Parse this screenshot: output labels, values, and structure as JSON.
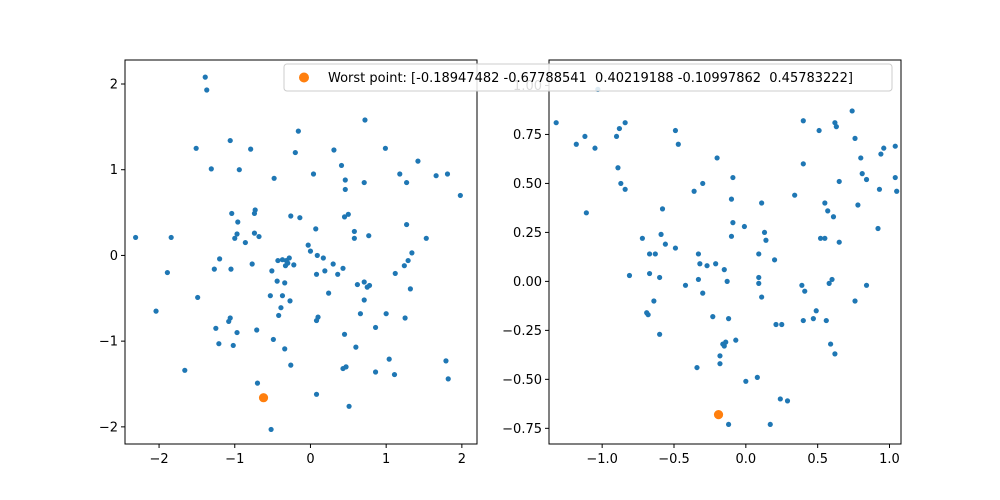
{
  "chart_data": [
    {
      "type": "scatter",
      "xlim": [
        -2.45,
        2.2
      ],
      "ylim": [
        -2.2,
        2.28
      ],
      "xticks": [
        -2,
        -1,
        0,
        1,
        2
      ],
      "xtick_labels": [
        "−2",
        "−1",
        "0",
        "1",
        "2"
      ],
      "yticks": [
        -2,
        -1,
        0,
        1,
        2
      ],
      "ytick_labels": [
        "−2",
        "−1",
        "0",
        "1",
        "2"
      ],
      "series": [
        {
          "color": "#1f77b4",
          "points": [
            [
              -1.39,
              2.08
            ],
            [
              -1.37,
              1.93
            ],
            [
              -1.51,
              1.25
            ],
            [
              -1.31,
              1.01
            ],
            [
              -1.06,
              1.34
            ],
            [
              -0.79,
              1.24
            ],
            [
              -0.94,
              1.0
            ],
            [
              -0.73,
              0.53
            ],
            [
              -0.74,
              0.49
            ],
            [
              -1.04,
              0.49
            ],
            [
              -0.96,
              0.39
            ],
            [
              -0.97,
              0.25
            ],
            [
              -1.0,
              0.2
            ],
            [
              -0.86,
              0.15
            ],
            [
              -0.74,
              0.26
            ],
            [
              -0.68,
              0.22
            ],
            [
              -1.2,
              -0.04
            ],
            [
              -1.27,
              -0.16
            ],
            [
              -1.05,
              -0.16
            ],
            [
              -0.77,
              -0.1
            ],
            [
              -1.49,
              -0.49
            ],
            [
              -1.25,
              -0.85
            ],
            [
              -1.06,
              -0.73
            ],
            [
              -1.08,
              -0.77
            ],
            [
              -0.97,
              -0.9
            ],
            [
              -1.02,
              -1.05
            ],
            [
              -1.21,
              -1.03
            ],
            [
              -0.71,
              -0.87
            ],
            [
              -0.48,
              0.9
            ],
            [
              -0.26,
              0.46
            ],
            [
              -0.14,
              0.44
            ],
            [
              0.07,
              0.31
            ],
            [
              -0.03,
              0.12
            ],
            [
              0.0,
              0.05
            ],
            [
              -0.37,
              -0.05
            ],
            [
              -0.43,
              -0.06
            ],
            [
              -0.32,
              -0.06
            ],
            [
              -0.28,
              -0.03
            ],
            [
              -0.3,
              -0.09
            ],
            [
              -0.33,
              -0.12
            ],
            [
              -0.22,
              -0.11
            ],
            [
              -0.51,
              -0.18
            ],
            [
              -0.44,
              -0.3
            ],
            [
              -0.34,
              -0.32
            ],
            [
              -0.53,
              -0.47
            ],
            [
              -0.37,
              -0.47
            ],
            [
              -0.39,
              -0.61
            ],
            [
              -0.42,
              -0.7
            ],
            [
              -0.27,
              -0.53
            ],
            [
              -0.49,
              -0.98
            ],
            [
              -0.34,
              -1.09
            ],
            [
              -0.26,
              -1.28
            ],
            [
              -0.2,
              1.2
            ],
            [
              -0.16,
              1.45
            ],
            [
              0.04,
              0.95
            ],
            [
              0.31,
              1.23
            ],
            [
              0.41,
              1.05
            ],
            [
              0.46,
              0.88
            ],
            [
              0.46,
              0.77
            ],
            [
              0.45,
              0.45
            ],
            [
              0.5,
              0.48
            ],
            [
              0.09,
              0.0
            ],
            [
              0.17,
              -0.03
            ],
            [
              0.08,
              -0.22
            ],
            [
              0.19,
              -0.18
            ],
            [
              0.3,
              -0.1
            ],
            [
              0.36,
              -0.22
            ],
            [
              0.43,
              -0.15
            ],
            [
              0.24,
              -0.44
            ],
            [
              0.1,
              -0.72
            ],
            [
              0.08,
              -0.76
            ],
            [
              0.45,
              -0.92
            ],
            [
              0.6,
              -1.07
            ],
            [
              0.43,
              -1.32
            ],
            [
              0.47,
              -1.3
            ],
            [
              0.08,
              -1.62
            ],
            [
              0.51,
              -1.76
            ],
            [
              -0.52,
              -2.03
            ],
            [
              -0.7,
              -1.49
            ],
            [
              0.72,
              1.58
            ],
            [
              0.99,
              1.25
            ],
            [
              0.71,
              0.85
            ],
            [
              0.58,
              0.28
            ],
            [
              0.58,
              0.2
            ],
            [
              0.77,
              0.23
            ],
            [
              0.62,
              -0.34
            ],
            [
              0.78,
              -0.35
            ],
            [
              0.71,
              -0.31
            ],
            [
              0.75,
              -0.37
            ],
            [
              0.71,
              -0.52
            ],
            [
              0.66,
              -0.68
            ],
            [
              0.86,
              -0.84
            ],
            [
              1.0,
              -0.68
            ],
            [
              0.86,
              -1.36
            ],
            [
              1.04,
              -1.21
            ],
            [
              1.11,
              -1.39
            ],
            [
              1.18,
              0.95
            ],
            [
              1.27,
              0.85
            ],
            [
              1.42,
              1.1
            ],
            [
              1.66,
              0.93
            ],
            [
              1.81,
              0.95
            ],
            [
              1.98,
              0.7
            ],
            [
              1.27,
              0.36
            ],
            [
              1.53,
              0.2
            ],
            [
              1.34,
              0.03
            ],
            [
              1.29,
              -0.06
            ],
            [
              1.24,
              -0.12
            ],
            [
              1.12,
              -0.21
            ],
            [
              1.32,
              -0.39
            ],
            [
              1.25,
              -0.73
            ],
            [
              1.79,
              -1.23
            ],
            [
              1.82,
              -1.44
            ],
            [
              -1.84,
              0.21
            ],
            [
              -1.89,
              -0.2
            ],
            [
              -2.31,
              0.21
            ],
            [
              -2.04,
              -0.65
            ],
            [
              -1.66,
              -1.34
            ]
          ]
        },
        {
          "color": "#ff7f0e",
          "points": [
            [
              -0.62,
              -1.66
            ]
          ]
        }
      ]
    },
    {
      "type": "scatter",
      "xlim": [
        -1.37,
        1.08
      ],
      "ylim": [
        -0.83,
        1.13
      ],
      "xticks": [
        -1.0,
        -0.5,
        0.0,
        0.5,
        1.0
      ],
      "xtick_labels": [
        "−1.0",
        "−0.5",
        "0.0",
        "0.5",
        "1.0"
      ],
      "yticks": [
        -0.75,
        -0.5,
        -0.25,
        0.0,
        0.25,
        0.5,
        0.75,
        1.0
      ],
      "ytick_labels": [
        "−0.75",
        "−0.50",
        "−0.25",
        "0.00",
        "0.25",
        "0.50",
        "0.75",
        "1.00"
      ],
      "series": [
        {
          "color": "#1f77b4",
          "points": [
            [
              -1.32,
              0.81
            ],
            [
              -1.18,
              0.7
            ],
            [
              -1.12,
              0.74
            ],
            [
              -1.11,
              0.35
            ],
            [
              -1.05,
              0.68
            ],
            [
              -1.03,
              0.98
            ],
            [
              -0.9,
              0.74
            ],
            [
              -0.88,
              0.78
            ],
            [
              -0.84,
              0.81
            ],
            [
              -0.89,
              0.58
            ],
            [
              -0.87,
              0.5
            ],
            [
              -0.84,
              0.47
            ],
            [
              -0.81,
              0.03
            ],
            [
              -0.72,
              0.22
            ],
            [
              -0.67,
              0.14
            ],
            [
              -0.63,
              0.14
            ],
            [
              -0.67,
              0.04
            ],
            [
              -0.64,
              -0.1
            ],
            [
              -0.68,
              -0.17
            ],
            [
              -0.69,
              -0.16
            ],
            [
              -0.6,
              0.02
            ],
            [
              -0.59,
              0.24
            ],
            [
              -0.58,
              0.37
            ],
            [
              -0.56,
              0.19
            ],
            [
              -0.6,
              -0.27
            ],
            [
              -0.49,
              0.77
            ],
            [
              -0.47,
              0.7
            ],
            [
              -0.49,
              0.17
            ],
            [
              -0.36,
              0.46
            ],
            [
              -0.42,
              -0.02
            ],
            [
              -0.34,
              -0.44
            ],
            [
              -0.3,
              0.5
            ],
            [
              -0.33,
              0.14
            ],
            [
              -0.32,
              0.09
            ],
            [
              -0.33,
              0.01
            ],
            [
              -0.3,
              -0.06
            ],
            [
              -0.27,
              0.08
            ],
            [
              -0.2,
              0.63
            ],
            [
              -0.23,
              -0.18
            ],
            [
              -0.18,
              -0.38
            ],
            [
              -0.18,
              -0.42
            ],
            [
              -0.16,
              -0.32
            ],
            [
              -0.15,
              -0.33
            ],
            [
              -0.14,
              -0.31
            ],
            [
              -0.15,
              0.06
            ],
            [
              -0.13,
              0.0
            ],
            [
              -0.12,
              -0.19
            ],
            [
              -0.12,
              -0.73
            ],
            [
              -0.09,
              0.53
            ],
            [
              -0.1,
              0.42
            ],
            [
              -0.1,
              0.23
            ],
            [
              -0.09,
              0.3
            ],
            [
              -0.07,
              -0.3
            ],
            [
              -0.01,
              0.28
            ],
            [
              0.0,
              -0.51
            ],
            [
              0.09,
              0.14
            ],
            [
              0.11,
              0.4
            ],
            [
              0.13,
              0.25
            ],
            [
              0.14,
              0.21
            ],
            [
              0.09,
              0.02
            ],
            [
              0.09,
              -0.01
            ],
            [
              0.11,
              -0.08
            ],
            [
              0.08,
              -0.49
            ],
            [
              0.17,
              -0.73
            ],
            [
              0.2,
              0.11
            ],
            [
              0.21,
              -0.22
            ],
            [
              0.25,
              -0.22
            ],
            [
              0.24,
              -0.6
            ],
            [
              0.29,
              -0.61
            ],
            [
              0.34,
              0.44
            ],
            [
              0.4,
              0.82
            ],
            [
              0.4,
              0.6
            ],
            [
              0.39,
              -0.02
            ],
            [
              0.41,
              -0.05
            ],
            [
              0.4,
              -0.2
            ],
            [
              0.47,
              -0.19
            ],
            [
              0.49,
              -0.15
            ],
            [
              0.52,
              0.22
            ],
            [
              0.55,
              0.22
            ],
            [
              0.56,
              -0.2
            ],
            [
              0.51,
              0.77
            ],
            [
              0.55,
              0.4
            ],
            [
              0.57,
              0.36
            ],
            [
              0.61,
              0.33
            ],
            [
              0.6,
              0.01
            ],
            [
              0.58,
              -0.01
            ],
            [
              0.59,
              -0.32
            ],
            [
              0.62,
              -0.37
            ],
            [
              0.62,
              0.81
            ],
            [
              0.63,
              0.79
            ],
            [
              0.65,
              0.51
            ],
            [
              0.65,
              0.2
            ],
            [
              0.74,
              0.87
            ],
            [
              0.76,
              0.73
            ],
            [
              0.78,
              0.39
            ],
            [
              0.76,
              -0.1
            ],
            [
              0.8,
              0.63
            ],
            [
              0.81,
              0.55
            ],
            [
              0.84,
              0.52
            ],
            [
              0.84,
              -0.02
            ],
            [
              0.93,
              0.47
            ],
            [
              0.92,
              0.27
            ],
            [
              0.94,
              0.65
            ],
            [
              0.96,
              0.68
            ],
            [
              1.04,
              0.69
            ],
            [
              1.04,
              0.53
            ],
            [
              1.05,
              0.46
            ],
            [
              -0.21,
              0.09
            ]
          ]
        },
        {
          "color": "#ff7f0e",
          "points": [
            [
              -0.19,
              -0.68
            ]
          ]
        }
      ]
    }
  ],
  "legend": {
    "label": "Worst point: [-0.18947482 -0.67788541  0.40219188 -0.10997862  0.45783222]",
    "color": "#ff7f0e",
    "placement": "top-right"
  }
}
